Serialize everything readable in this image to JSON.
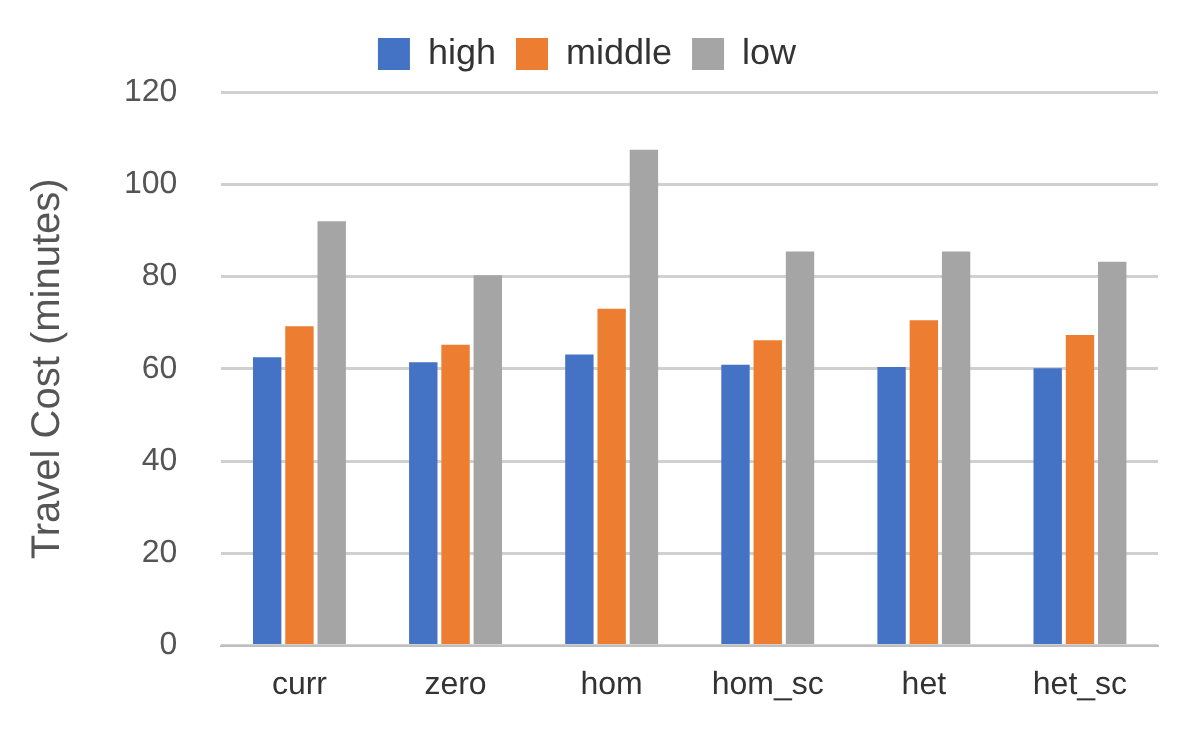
{
  "chart_data": {
    "type": "bar",
    "ylabel": "Travel Cost (minutes)",
    "categories": [
      "curr",
      "zero",
      "hom",
      "hom_sc",
      "het",
      "het_sc"
    ],
    "series": [
      {
        "name": "high",
        "color": "#4472c4",
        "values": [
          62.5,
          61.4,
          63.1,
          60.9,
          60.4,
          60.1
        ]
      },
      {
        "name": "middle",
        "color": "#ed7d31",
        "values": [
          69.2,
          65.2,
          73,
          66.2,
          70.5,
          67.3
        ]
      },
      {
        "name": "low",
        "color": "#a5a5a5",
        "values": [
          92,
          80.3,
          107.5,
          85.4,
          85.4,
          83.2
        ]
      }
    ],
    "ylim": [
      0,
      120
    ],
    "yticks": [
      0,
      20,
      40,
      60,
      80,
      100,
      120
    ],
    "grid": "y",
    "legend": "top"
  }
}
